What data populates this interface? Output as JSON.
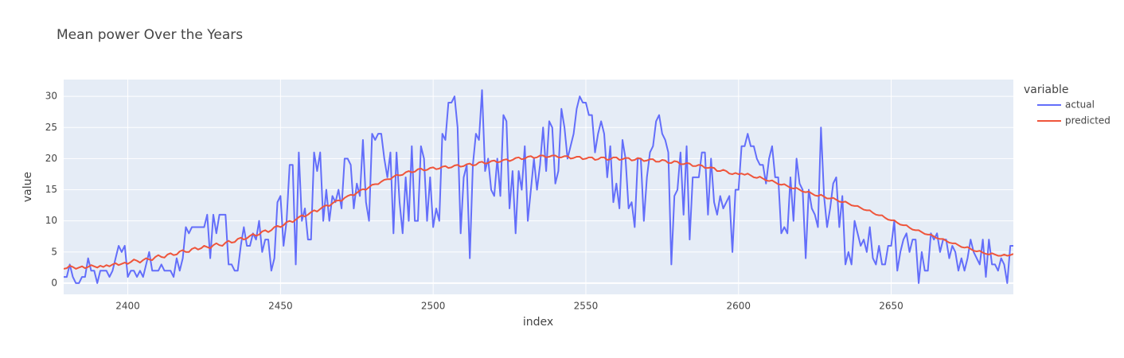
{
  "chart_data": {
    "type": "line",
    "title": "Mean power  Over the Years",
    "x_label": "index",
    "y_label": "value",
    "legend_title": "variable",
    "legend_position": "right",
    "grid": true,
    "xlim": [
      2379,
      2690
    ],
    "ylim": [
      -1.8,
      32.7
    ],
    "xticks": [
      2400,
      2450,
      2500,
      2550,
      2600,
      2650
    ],
    "yticks": [
      0,
      5,
      10,
      15,
      20,
      25,
      30
    ],
    "x": [
      2379,
      2380,
      2381,
      2382,
      2383,
      2384,
      2385,
      2386,
      2387,
      2388,
      2389,
      2390,
      2391,
      2392,
      2393,
      2394,
      2395,
      2396,
      2397,
      2398,
      2399,
      2400,
      2401,
      2402,
      2403,
      2404,
      2405,
      2406,
      2407,
      2408,
      2409,
      2410,
      2411,
      2412,
      2413,
      2414,
      2415,
      2416,
      2417,
      2418,
      2419,
      2420,
      2421,
      2422,
      2423,
      2424,
      2425,
      2426,
      2427,
      2428,
      2429,
      2430,
      2431,
      2432,
      2433,
      2434,
      2435,
      2436,
      2437,
      2438,
      2439,
      2440,
      2441,
      2442,
      2443,
      2444,
      2445,
      2446,
      2447,
      2448,
      2449,
      2450,
      2451,
      2452,
      2453,
      2454,
      2455,
      2456,
      2457,
      2458,
      2459,
      2460,
      2461,
      2462,
      2463,
      2464,
      2465,
      2466,
      2467,
      2468,
      2469,
      2470,
      2471,
      2472,
      2473,
      2474,
      2475,
      2476,
      2477,
      2478,
      2479,
      2480,
      2481,
      2482,
      2483,
      2484,
      2485,
      2486,
      2487,
      2488,
      2489,
      2490,
      2491,
      2492,
      2493,
      2494,
      2495,
      2496,
      2497,
      2498,
      2499,
      2500,
      2501,
      2502,
      2503,
      2504,
      2505,
      2506,
      2507,
      2508,
      2509,
      2510,
      2511,
      2512,
      2513,
      2514,
      2515,
      2516,
      2517,
      2518,
      2519,
      2520,
      2521,
      2522,
      2523,
      2524,
      2525,
      2526,
      2527,
      2528,
      2529,
      2530,
      2531,
      2532,
      2533,
      2534,
      2535,
      2536,
      2537,
      2538,
      2539,
      2540,
      2541,
      2542,
      2543,
      2544,
      2545,
      2546,
      2547,
      2548,
      2549,
      2550,
      2551,
      2552,
      2553,
      2554,
      2555,
      2556,
      2557,
      2558,
      2559,
      2560,
      2561,
      2562,
      2563,
      2564,
      2565,
      2566,
      2567,
      2568,
      2569,
      2570,
      2571,
      2572,
      2573,
      2574,
      2575,
      2576,
      2577,
      2578,
      2579,
      2580,
      2581,
      2582,
      2583,
      2584,
      2585,
      2586,
      2587,
      2588,
      2589,
      2590,
      2591,
      2592,
      2593,
      2594,
      2595,
      2596,
      2597,
      2598,
      2599,
      2600,
      2601,
      2602,
      2603,
      2604,
      2605,
      2606,
      2607,
      2608,
      2609,
      2610,
      2611,
      2612,
      2613,
      2614,
      2615,
      2616,
      2617,
      2618,
      2619,
      2620,
      2621,
      2622,
      2623,
      2624,
      2625,
      2626,
      2627,
      2628,
      2629,
      2630,
      2631,
      2632,
      2633,
      2634,
      2635,
      2636,
      2637,
      2638,
      2639,
      2640,
      2641,
      2642,
      2643,
      2644,
      2645,
      2646,
      2647,
      2648,
      2649,
      2650,
      2651,
      2652,
      2653,
      2654,
      2655,
      2656,
      2657,
      2658,
      2659,
      2660,
      2661,
      2662,
      2663,
      2664,
      2665,
      2666,
      2667,
      2668,
      2669,
      2670,
      2671,
      2672,
      2673,
      2674,
      2675,
      2676,
      2677,
      2678,
      2679,
      2680,
      2681,
      2682,
      2683,
      2684,
      2685,
      2686,
      2687,
      2688,
      2689,
      2690
    ],
    "series": [
      {
        "name": "actual",
        "color": "#636efa",
        "values": [
          1,
          1,
          3,
          1,
          0,
          0,
          1,
          1,
          4,
          2,
          2,
          0,
          2,
          2,
          2,
          1,
          2,
          4,
          6,
          5,
          6,
          1,
          2,
          2,
          1,
          2,
          1,
          3,
          5,
          2,
          2,
          2,
          3,
          2,
          2,
          2,
          1,
          4,
          2,
          4,
          9,
          8,
          9,
          9,
          9,
          9,
          9,
          11,
          4,
          11,
          8,
          11,
          11,
          11,
          3,
          3,
          2,
          2,
          6,
          9,
          6,
          6,
          8,
          7,
          10,
          5,
          7,
          7,
          2,
          4,
          13,
          14,
          6,
          10,
          19,
          19,
          3,
          21,
          10,
          12,
          7,
          7,
          21,
          18,
          21,
          10,
          15,
          10,
          14,
          13,
          15,
          12,
          20,
          20,
          19,
          12,
          16,
          14,
          23,
          13,
          10,
          24,
          23,
          24,
          24,
          20,
          17,
          21,
          8,
          21,
          13,
          8,
          17,
          10,
          22,
          10,
          10,
          22,
          20,
          10,
          17,
          9,
          12,
          10,
          24,
          23,
          29,
          29,
          30,
          25,
          8,
          17,
          19,
          4,
          19,
          24,
          23,
          31,
          18,
          20,
          15,
          14,
          20,
          14,
          27,
          26,
          12,
          18,
          8,
          18,
          15,
          22,
          10,
          15,
          20,
          15,
          19,
          25,
          18,
          26,
          25,
          16,
          18,
          28,
          25,
          20,
          22,
          24,
          28,
          30,
          29,
          29,
          27,
          27,
          21,
          24,
          26,
          24,
          17,
          22,
          13,
          16,
          12,
          23,
          20,
          12,
          13,
          9,
          20,
          20,
          10,
          17,
          21,
          22,
          26,
          27,
          24,
          23,
          21,
          3,
          14,
          15,
          21,
          11,
          22,
          7,
          17,
          17,
          17,
          21,
          21,
          11,
          20,
          13,
          11,
          14,
          12,
          13,
          14,
          5,
          15,
          15,
          22,
          22,
          24,
          22,
          22,
          20,
          19,
          19,
          16,
          20,
          22,
          17,
          17,
          8,
          9,
          8,
          17,
          10,
          20,
          16,
          15,
          4,
          15,
          12,
          11,
          9,
          25,
          14,
          9,
          12,
          16,
          17,
          9,
          14,
          3,
          5,
          3,
          10,
          8,
          6,
          7,
          5,
          9,
          4,
          3,
          6,
          3,
          3,
          6,
          6,
          10,
          2,
          5,
          7,
          8,
          5,
          7,
          7,
          0,
          5,
          2,
          2,
          8,
          7,
          8,
          5,
          7,
          7,
          4,
          6,
          5,
          2,
          4,
          2,
          4,
          7,
          5,
          4,
          3,
          7,
          1,
          7,
          3,
          3,
          2,
          4,
          3,
          0,
          6,
          6
        ]
      },
      {
        "name": "predicted",
        "color": "#EF553B",
        "values": [
          2.3,
          2.4,
          2.8,
          2.6,
          2.3,
          2.5,
          2.7,
          2.4,
          2.6,
          2.9,
          2.7,
          2.5,
          2.8,
          2.6,
          2.9,
          2.7,
          3.0,
          3.2,
          2.9,
          3.1,
          3.3,
          3.1,
          3.4,
          3.8,
          3.6,
          3.3,
          3.7,
          4.0,
          3.8,
          3.7,
          4.2,
          4.5,
          4.2,
          4.1,
          4.6,
          4.8,
          4.5,
          4.6,
          5.1,
          5.3,
          5.0,
          5.0,
          5.5,
          5.7,
          5.4,
          5.6,
          6.0,
          5.8,
          5.6,
          6.1,
          6.4,
          6.1,
          6.0,
          6.5,
          6.8,
          6.5,
          6.6,
          7.1,
          7.3,
          7.0,
          7.2,
          7.6,
          7.9,
          7.6,
          7.8,
          8.3,
          8.5,
          8.2,
          8.5,
          9.0,
          9.2,
          9.0,
          9.3,
          9.8,
          10.0,
          9.8,
          10.2,
          10.6,
          10.9,
          10.7,
          11.0,
          11.4,
          11.7,
          11.5,
          11.9,
          12.3,
          12.5,
          12.4,
          12.8,
          13.2,
          13.3,
          13.2,
          13.7,
          14.0,
          14.2,
          14.1,
          14.5,
          14.9,
          15.1,
          15.0,
          15.4,
          15.8,
          15.9,
          15.9,
          16.3,
          16.6,
          16.7,
          16.7,
          17.1,
          17.4,
          17.3,
          17.4,
          17.8,
          18.0,
          17.8,
          17.9,
          18.3,
          18.4,
          18.1,
          18.2,
          18.5,
          18.6,
          18.3,
          18.4,
          18.7,
          18.8,
          18.5,
          18.6,
          18.9,
          19.0,
          18.7,
          18.8,
          19.1,
          19.2,
          18.9,
          19.0,
          19.4,
          19.5,
          19.2,
          19.3,
          19.6,
          19.7,
          19.4,
          19.5,
          19.8,
          19.9,
          19.6,
          19.8,
          20.1,
          20.2,
          19.9,
          20.0,
          20.3,
          20.4,
          20.1,
          20.2,
          20.5,
          20.5,
          20.2,
          20.3,
          20.5,
          20.5,
          20.2,
          20.2,
          20.4,
          20.4,
          20.0,
          20.1,
          20.3,
          20.3,
          19.9,
          20.0,
          20.2,
          20.2,
          19.8,
          19.9,
          20.2,
          20.2,
          19.8,
          19.9,
          20.2,
          20.2,
          19.8,
          19.9,
          20.1,
          20.1,
          19.7,
          19.8,
          20.1,
          20.0,
          19.6,
          19.7,
          19.9,
          19.9,
          19.5,
          19.5,
          19.8,
          19.7,
          19.3,
          19.3,
          19.6,
          19.5,
          19.1,
          19.1,
          19.3,
          19.2,
          18.8,
          18.8,
          19.0,
          18.9,
          18.5,
          18.5,
          18.6,
          18.5,
          18.0,
          18.0,
          18.2,
          18.0,
          17.6,
          17.5,
          17.7,
          17.5,
          17.6,
          17.4,
          17.6,
          17.3,
          17.0,
          16.9,
          17.1,
          16.8,
          16.5,
          16.4,
          16.5,
          16.2,
          15.9,
          15.8,
          15.9,
          15.6,
          15.3,
          15.2,
          15.3,
          15.0,
          14.7,
          14.6,
          14.7,
          14.4,
          14.1,
          14.0,
          14.2,
          13.9,
          13.6,
          13.6,
          13.7,
          13.4,
          13.1,
          13.0,
          13.1,
          12.8,
          12.5,
          12.4,
          12.4,
          12.1,
          11.8,
          11.7,
          11.7,
          11.3,
          11.0,
          10.9,
          10.9,
          10.5,
          10.2,
          10.1,
          10.1,
          9.7,
          9.4,
          9.3,
          9.3,
          8.9,
          8.6,
          8.5,
          8.5,
          8.2,
          7.9,
          7.8,
          7.8,
          7.5,
          7.2,
          7.1,
          7.1,
          6.8,
          6.5,
          6.4,
          6.4,
          6.1,
          5.8,
          5.7,
          5.8,
          5.5,
          5.2,
          5.1,
          5.2,
          4.9,
          4.7,
          4.6,
          4.8,
          4.6,
          4.4,
          4.4,
          4.6,
          4.4,
          4.5,
          4.7
        ]
      }
    ]
  }
}
